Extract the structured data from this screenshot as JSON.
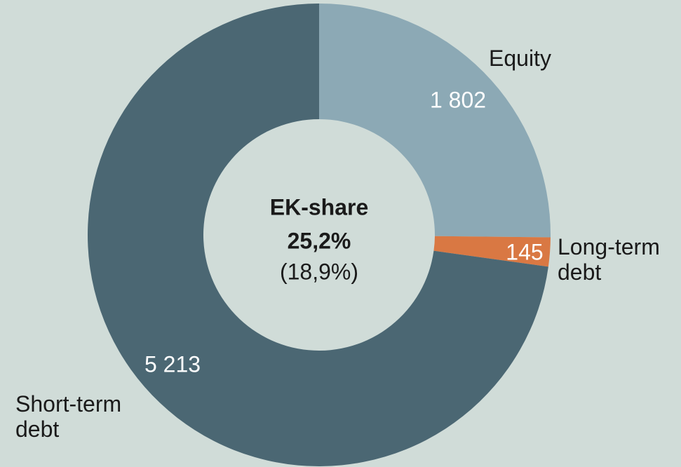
{
  "chart_data": {
    "type": "donut",
    "categories": [
      "Equity",
      "Long-term debt",
      "Short-term debt"
    ],
    "values": [
      1802,
      145,
      5213
    ],
    "value_labels": [
      "1 802",
      "145",
      "5 213"
    ],
    "colors": [
      "#8ca9b5",
      "#d97843",
      "#4b6773"
    ],
    "center_text": {
      "label": "EK-share",
      "value": "25,2%",
      "previous": "(18,9%)"
    }
  }
}
